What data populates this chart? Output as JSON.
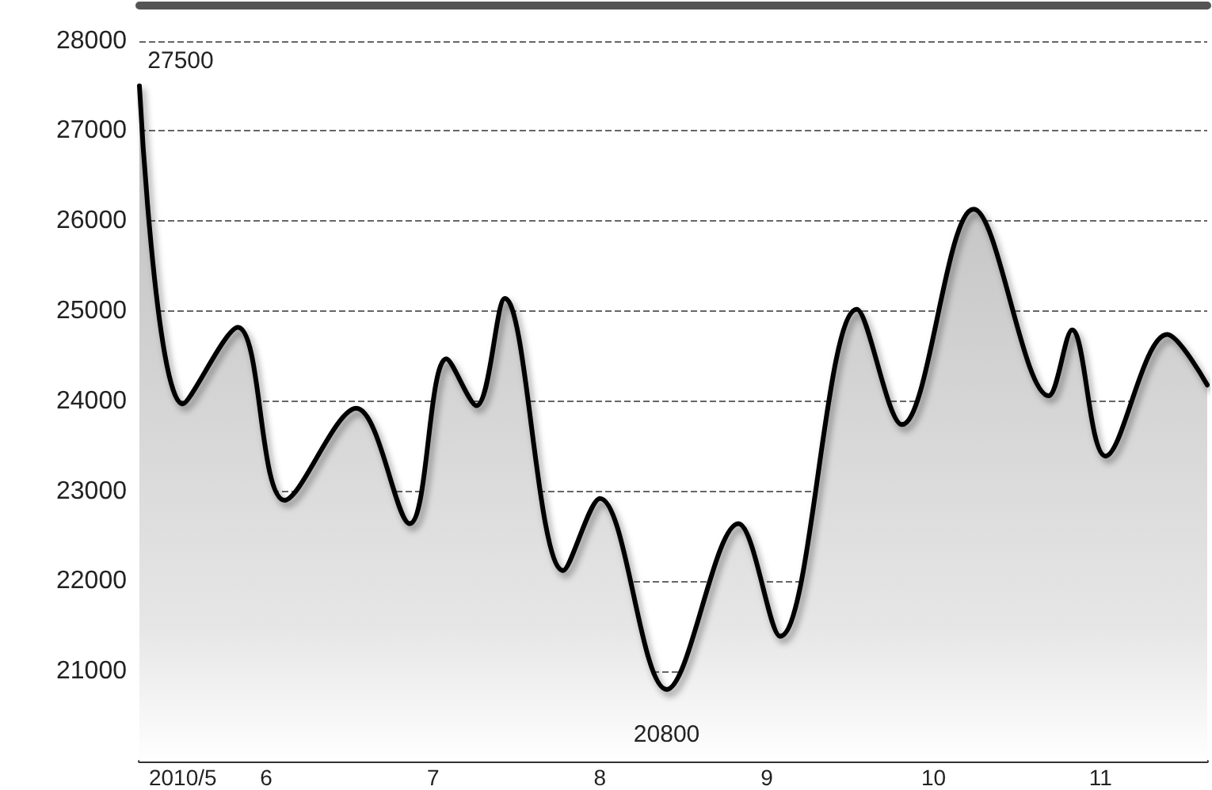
{
  "chart_data": {
    "type": "area",
    "x": [
      5.24,
      5.5,
      5.83,
      6.11,
      6.54,
      6.86,
      7.08,
      7.26,
      7.43,
      7.78,
      8.0,
      8.4,
      8.83,
      9.08,
      9.54,
      9.81,
      10.24,
      10.69,
      10.83,
      11.03,
      11.4,
      11.64
    ],
    "series": [
      {
        "color": "#000000",
        "values": [
          27500,
          23970,
          24820,
          22900,
          23920,
          22640,
          24470,
          23950,
          25140,
          22120,
          22920,
          20800,
          22640,
          21390,
          25020,
          23740,
          26130,
          24060,
          24790,
          23390,
          24740,
          24180
        ],
        "value_labels": [
          "27500",
          null,
          null,
          null,
          null,
          null,
          null,
          null,
          null,
          null,
          null,
          "20800",
          null,
          null,
          null,
          null,
          null,
          null,
          null,
          null,
          null,
          null
        ]
      }
    ],
    "xlim": [
      5.24,
      11.64
    ],
    "xticks": [
      {
        "value": 5.5,
        "label": "2010/5"
      },
      6,
      7,
      8,
      9,
      10,
      11
    ],
    "ylim": [
      20000,
      28400
    ],
    "yticks": [
      21000,
      22000,
      23000,
      24000,
      25000,
      26000,
      27000,
      28000
    ],
    "grid": "y",
    "marker": "none",
    "line_style": "solid"
  }
}
